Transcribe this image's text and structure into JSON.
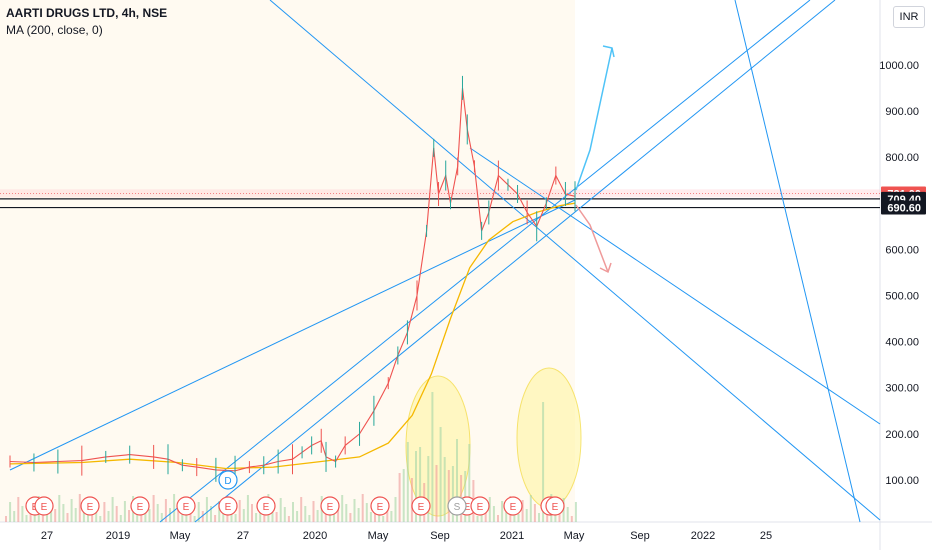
{
  "header": {
    "symbol": "AARTI DRUGS LTD, 4h, NSE",
    "indicator": "MA (200, close, 0)",
    "currency": "INR"
  },
  "chart_data": {
    "type": "candlestick",
    "symbol": "AARTI DRUGS LTD",
    "interval": "4h",
    "exchange": "NSE",
    "y_axis": {
      "position": "right",
      "ticks": [
        100,
        200,
        300,
        400,
        500,
        600,
        700,
        800,
        900,
        1000
      ],
      "tick_labels": [
        "100.00",
        "200.00",
        "300.00",
        "400.00",
        "500.00",
        "600.00",
        "700.00",
        "800.00",
        "900.00",
        "1000.00"
      ]
    },
    "x_axis": {
      "tick_labels": [
        "27",
        "2019",
        "May",
        "27",
        "2020",
        "May",
        "Sep",
        "2021",
        "May",
        "Sep",
        "2022",
        "25"
      ]
    },
    "price_labels": [
      {
        "value": 721.0,
        "label": "721.00",
        "color": "#ef5350"
      },
      {
        "value": 709.4,
        "label": "709.40",
        "color": "#131722"
      },
      {
        "value": 690.6,
        "label": "690.60",
        "color": "#131722"
      }
    ],
    "horizontal_lines": [
      709.4,
      690.6
    ],
    "price_series": [
      {
        "t": 0.0,
        "p": 140
      },
      {
        "t": 0.5,
        "p": 138
      },
      {
        "t": 1.0,
        "p": 140
      },
      {
        "t": 1.5,
        "p": 142
      },
      {
        "t": 2.0,
        "p": 150
      },
      {
        "t": 2.5,
        "p": 155
      },
      {
        "t": 3.0,
        "p": 150
      },
      {
        "t": 3.3,
        "p": 145
      },
      {
        "t": 3.6,
        "p": 132
      },
      {
        "t": 3.9,
        "p": 128
      },
      {
        "t": 4.3,
        "p": 122
      },
      {
        "t": 4.7,
        "p": 120
      },
      {
        "t": 5.0,
        "p": 128
      },
      {
        "t": 5.3,
        "p": 132
      },
      {
        "t": 5.6,
        "p": 140
      },
      {
        "t": 5.9,
        "p": 145
      },
      {
        "t": 6.1,
        "p": 160
      },
      {
        "t": 6.3,
        "p": 175
      },
      {
        "t": 6.5,
        "p": 185
      },
      {
        "t": 6.6,
        "p": 150
      },
      {
        "t": 6.8,
        "p": 140
      },
      {
        "t": 7.0,
        "p": 175
      },
      {
        "t": 7.3,
        "p": 200
      },
      {
        "t": 7.6,
        "p": 250
      },
      {
        "t": 7.9,
        "p": 310
      },
      {
        "t": 8.1,
        "p": 370
      },
      {
        "t": 8.3,
        "p": 420
      },
      {
        "t": 8.5,
        "p": 500
      },
      {
        "t": 8.7,
        "p": 640
      },
      {
        "t": 8.85,
        "p": 820
      },
      {
        "t": 8.95,
        "p": 720
      },
      {
        "t": 9.1,
        "p": 760
      },
      {
        "t": 9.2,
        "p": 700
      },
      {
        "t": 9.35,
        "p": 780
      },
      {
        "t": 9.45,
        "p": 950
      },
      {
        "t": 9.55,
        "p": 860
      },
      {
        "t": 9.7,
        "p": 780
      },
      {
        "t": 9.85,
        "p": 640
      },
      {
        "t": 10.0,
        "p": 680
      },
      {
        "t": 10.2,
        "p": 760
      },
      {
        "t": 10.4,
        "p": 740
      },
      {
        "t": 10.6,
        "p": 720
      },
      {
        "t": 10.8,
        "p": 680
      },
      {
        "t": 11.0,
        "p": 650
      },
      {
        "t": 11.2,
        "p": 700
      },
      {
        "t": 11.4,
        "p": 760
      },
      {
        "t": 11.6,
        "p": 720
      },
      {
        "t": 11.8,
        "p": 715
      }
    ],
    "ma_series": [
      {
        "t": 0.0,
        "p": 135
      },
      {
        "t": 1.5,
        "p": 138
      },
      {
        "t": 2.5,
        "p": 145
      },
      {
        "t": 3.5,
        "p": 138
      },
      {
        "t": 4.5,
        "p": 125
      },
      {
        "t": 5.5,
        "p": 128
      },
      {
        "t": 6.5,
        "p": 140
      },
      {
        "t": 7.3,
        "p": 150
      },
      {
        "t": 7.9,
        "p": 180
      },
      {
        "t": 8.4,
        "p": 240
      },
      {
        "t": 8.8,
        "p": 330
      },
      {
        "t": 9.2,
        "p": 450
      },
      {
        "t": 9.6,
        "p": 560
      },
      {
        "t": 10.0,
        "p": 620
      },
      {
        "t": 10.5,
        "p": 660
      },
      {
        "t": 11.0,
        "p": 680
      },
      {
        "t": 11.5,
        "p": 695
      },
      {
        "t": 11.8,
        "p": 700
      }
    ],
    "earnings_markers": [
      "E",
      "E",
      "E",
      "E",
      "E",
      "E",
      "E",
      "E",
      "E",
      "E",
      "E",
      "E",
      "E",
      "E",
      "E"
    ],
    "dividend_markers": [
      "D",
      "S"
    ],
    "grid": false,
    "legend": "top-left"
  },
  "colors": {
    "trendline": "#2196f3",
    "up_arrow": "#4fc3f7",
    "down_arrow": "#ef5350",
    "ma": "#f5b800",
    "price": "#ef5350",
    "highlight_ellipse": "#fff59d",
    "shaded_region": "#fff3e0"
  }
}
